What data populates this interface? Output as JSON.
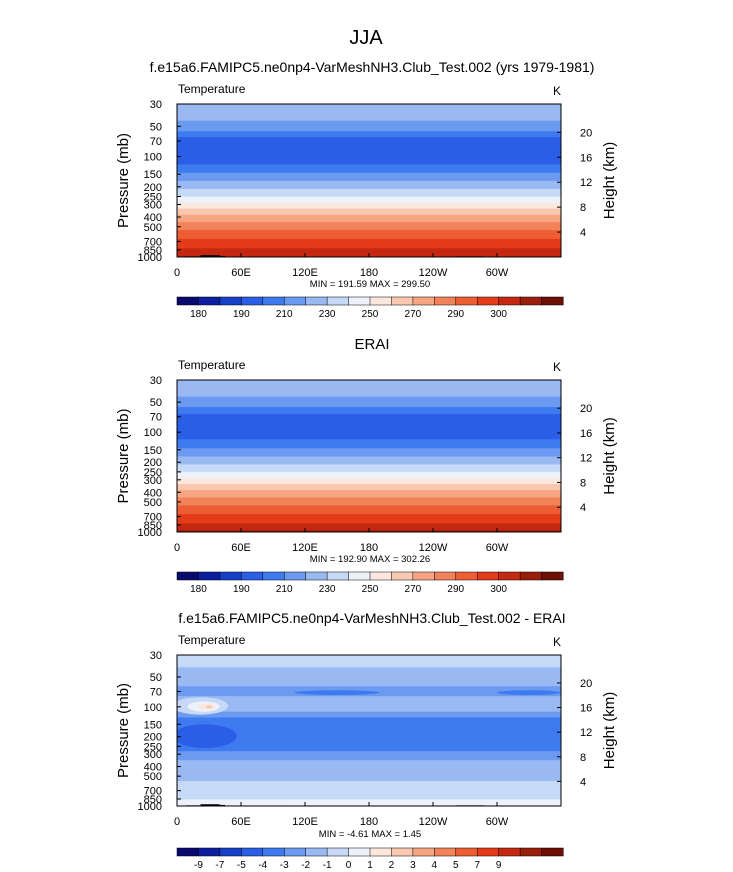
{
  "figure": {
    "title": "JJA"
  },
  "colorbars": {
    "temperature": {
      "colors": [
        "#0a0a6e",
        "#0d1fa0",
        "#1640c8",
        "#2a5ee6",
        "#3f7bf0",
        "#6c9af0",
        "#9ab8f2",
        "#c6d9f6",
        "#ecf1fa",
        "#fce7dd",
        "#f8c9b0",
        "#f6a683",
        "#f2825a",
        "#ee5e34",
        "#e43c18",
        "#c42810",
        "#9a1e0c",
        "#6e0f06"
      ],
      "labels": [
        "180",
        "190",
        "210",
        "230",
        "250",
        "270",
        "290",
        "300"
      ],
      "label_bounds": [
        1,
        3,
        5,
        7,
        9,
        11,
        13,
        15
      ]
    },
    "difference": {
      "colors": [
        "#0a0a6e",
        "#0d1fa0",
        "#1640c8",
        "#2a5ee6",
        "#3f7bf0",
        "#6c9af0",
        "#9ab8f2",
        "#c6d9f6",
        "#ecf1fa",
        "#fce7dd",
        "#f8c9b0",
        "#f6a683",
        "#f2825a",
        "#ee5e34",
        "#e43c18",
        "#c42810",
        "#9a1e0c",
        "#6e0f06"
      ],
      "labels": [
        "-9",
        "-7",
        "-5",
        "-4",
        "-3",
        "-2",
        "-1",
        "0",
        "1",
        "2",
        "3",
        "4",
        "5",
        "7",
        "9"
      ],
      "label_bounds": [
        1,
        2,
        3,
        4,
        5,
        6,
        7,
        8,
        9,
        10,
        11,
        12,
        13,
        14,
        15
      ]
    }
  },
  "chart_data": [
    {
      "type": "heatmap",
      "title": "f.e15a6.FAMIPC5.ne0np4-VarMeshNH3.Club_Test.002 (yrs 1979-1981)",
      "left_label": "Temperature",
      "units": "K",
      "ylabel": "Pressure (mb)",
      "ylabel_right": "Height (km)",
      "x_ticks": [
        "0",
        "60E",
        "120E",
        "180",
        "120W",
        "60W"
      ],
      "x_tick_lon": [
        0,
        60,
        120,
        180,
        240,
        300
      ],
      "xlim": [
        0,
        360
      ],
      "y_ticks": [
        "30",
        "50",
        "70",
        "100",
        "150",
        "200",
        "250",
        "300",
        "400",
        "500",
        "700",
        "850",
        "1000"
      ],
      "y_tick_values": [
        30,
        50,
        70,
        100,
        150,
        200,
        250,
        300,
        400,
        500,
        700,
        850,
        1000
      ],
      "ylim": [
        1000,
        30
      ],
      "height_ticks": [
        "20",
        "16",
        "12",
        "8",
        "4"
      ],
      "height_values": [
        20,
        16,
        12,
        8,
        4
      ],
      "stats": "MIN = 191.59  MAX = 299.50",
      "min": 191.59,
      "max": 299.5,
      "colorbar": "temperature",
      "levels": [
        {
          "p_top": 30,
          "p_bot": 44,
          "color_index": 6
        },
        {
          "p_top": 44,
          "p_bot": 56,
          "color_index": 5
        },
        {
          "p_top": 56,
          "p_bot": 64,
          "color_index": 4
        },
        {
          "p_top": 64,
          "p_bot": 120,
          "color_index": 3
        },
        {
          "p_top": 120,
          "p_bot": 145,
          "color_index": 4
        },
        {
          "p_top": 145,
          "p_bot": 175,
          "color_index": 5
        },
        {
          "p_top": 175,
          "p_bot": 210,
          "color_index": 6
        },
        {
          "p_top": 210,
          "p_bot": 250,
          "color_index": 7
        },
        {
          "p_top": 250,
          "p_bot": 290,
          "color_index": 8
        },
        {
          "p_top": 290,
          "p_bot": 330,
          "color_index": 9
        },
        {
          "p_top": 330,
          "p_bot": 380,
          "color_index": 10
        },
        {
          "p_top": 380,
          "p_bot": 450,
          "color_index": 11
        },
        {
          "p_top": 450,
          "p_bot": 540,
          "color_index": 12
        },
        {
          "p_top": 540,
          "p_bot": 660,
          "color_index": 13
        },
        {
          "p_top": 660,
          "p_bot": 820,
          "color_index": 14
        },
        {
          "p_top": 820,
          "p_bot": 1000,
          "color_index": 15
        }
      ],
      "topography": [
        {
          "lon_start": 8,
          "lon_end": 22,
          "p_top": 985
        },
        {
          "lon_start": 22,
          "lon_end": 40,
          "p_top": 960
        },
        {
          "lon_start": 40,
          "lon_end": 45,
          "p_top": 975
        },
        {
          "lon_start": 100,
          "lon_end": 104,
          "p_top": 988
        },
        {
          "lon_start": 262,
          "lon_end": 288,
          "p_top": 985
        }
      ]
    },
    {
      "type": "heatmap",
      "title": "ERAI",
      "left_label": "Temperature",
      "units": "K",
      "ylabel": "Pressure (mb)",
      "ylabel_right": "Height (km)",
      "x_ticks": [
        "0",
        "60E",
        "120E",
        "180",
        "120W",
        "60W"
      ],
      "x_tick_lon": [
        0,
        60,
        120,
        180,
        240,
        300
      ],
      "xlim": [
        0,
        360
      ],
      "y_ticks": [
        "30",
        "50",
        "70",
        "100",
        "150",
        "200",
        "250",
        "300",
        "400",
        "500",
        "700",
        "850",
        "1000"
      ],
      "y_tick_values": [
        30,
        50,
        70,
        100,
        150,
        200,
        250,
        300,
        400,
        500,
        700,
        850,
        1000
      ],
      "ylim": [
        1000,
        30
      ],
      "height_ticks": [
        "20",
        "16",
        "12",
        "8",
        "4"
      ],
      "height_values": [
        20,
        16,
        12,
        8,
        4
      ],
      "stats": "MIN = 192.90  MAX = 302.26",
      "min": 192.9,
      "max": 302.26,
      "colorbar": "temperature",
      "levels": [
        {
          "p_top": 30,
          "p_bot": 44,
          "color_index": 6
        },
        {
          "p_top": 44,
          "p_bot": 56,
          "color_index": 5
        },
        {
          "p_top": 56,
          "p_bot": 66,
          "color_index": 4
        },
        {
          "p_top": 66,
          "p_bot": 86,
          "color_index": 3
        },
        {
          "p_top": 86,
          "p_bot": 118,
          "color_index": 3
        },
        {
          "p_top": 118,
          "p_bot": 145,
          "color_index": 4
        },
        {
          "p_top": 145,
          "p_bot": 175,
          "color_index": 5
        },
        {
          "p_top": 175,
          "p_bot": 210,
          "color_index": 6
        },
        {
          "p_top": 210,
          "p_bot": 250,
          "color_index": 7
        },
        {
          "p_top": 250,
          "p_bot": 290,
          "color_index": 8
        },
        {
          "p_top": 290,
          "p_bot": 330,
          "color_index": 9
        },
        {
          "p_top": 330,
          "p_bot": 380,
          "color_index": 10
        },
        {
          "p_top": 380,
          "p_bot": 450,
          "color_index": 11
        },
        {
          "p_top": 450,
          "p_bot": 540,
          "color_index": 12
        },
        {
          "p_top": 540,
          "p_bot": 660,
          "color_index": 13
        },
        {
          "p_top": 660,
          "p_bot": 820,
          "color_index": 14
        },
        {
          "p_top": 820,
          "p_bot": 960,
          "color_index": 15
        },
        {
          "p_top": 960,
          "p_bot": 1000,
          "color_index": 16
        }
      ],
      "topography": []
    },
    {
      "type": "heatmap",
      "title": "f.e15a6.FAMIPC5.ne0np4-VarMeshNH3.Club_Test.002 - ERAI",
      "left_label": "Temperature",
      "units": "K",
      "ylabel": "Pressure (mb)",
      "ylabel_right": "Height (km)",
      "x_ticks": [
        "0",
        "60E",
        "120E",
        "180",
        "120W",
        "60W"
      ],
      "x_tick_lon": [
        0,
        60,
        120,
        180,
        240,
        300
      ],
      "xlim": [
        0,
        360
      ],
      "y_ticks": [
        "30",
        "50",
        "70",
        "100",
        "150",
        "200",
        "250",
        "300",
        "400",
        "500",
        "700",
        "850",
        "1000"
      ],
      "y_tick_values": [
        30,
        50,
        70,
        100,
        150,
        200,
        250,
        300,
        400,
        500,
        700,
        850,
        1000
      ],
      "ylim": [
        1000,
        30
      ],
      "height_ticks": [
        "20",
        "16",
        "12",
        "8",
        "4"
      ],
      "height_values": [
        20,
        16,
        12,
        8,
        4
      ],
      "stats": "MIN = -4.61  MAX =  1.45",
      "min": -4.61,
      "max": 1.45,
      "colorbar": "difference",
      "background_color_index": 6,
      "levels": [
        {
          "p_top": 30,
          "p_bot": 40,
          "color_index": 7
        },
        {
          "p_top": 40,
          "p_bot": 62,
          "color_index": 6
        },
        {
          "p_top": 62,
          "p_bot": 78,
          "color_index": 5
        },
        {
          "p_top": 78,
          "p_bot": 112,
          "color_index": 6
        },
        {
          "p_top": 112,
          "p_bot": 128,
          "color_index": 5
        },
        {
          "p_top": 128,
          "p_bot": 280,
          "color_index": 4
        },
        {
          "p_top": 280,
          "p_bot": 345,
          "color_index": 5
        },
        {
          "p_top": 345,
          "p_bot": 560,
          "color_index": 6
        },
        {
          "p_top": 560,
          "p_bot": 860,
          "color_index": 7
        },
        {
          "p_top": 860,
          "p_bot": 1000,
          "color_index": 8
        }
      ],
      "blobs": [
        {
          "lon": 22,
          "lon_r": 26,
          "p": 100,
          "p_r": 20,
          "color_index": 7
        },
        {
          "lon": 25,
          "lon_r": 15,
          "p": 100,
          "p_r": 12,
          "color_index": 8
        },
        {
          "lon": 28,
          "lon_r": 8,
          "p": 100,
          "p_r": 7,
          "color_index": 9
        },
        {
          "lon": 30,
          "lon_r": 3,
          "p": 100,
          "p_r": 3,
          "color_index": 10
        },
        {
          "lon": 26,
          "lon_r": 30,
          "p": 205,
          "p_r": 55,
          "color_index": 3
        },
        {
          "lon": 150,
          "lon_r": 40,
          "p": 72,
          "p_r": 4,
          "color_index": 4
        },
        {
          "lon": 330,
          "lon_r": 30,
          "p": 72,
          "p_r": 4,
          "color_index": 4
        }
      ],
      "topography": [
        {
          "lon_start": 8,
          "lon_end": 22,
          "p_top": 985
        },
        {
          "lon_start": 22,
          "lon_end": 40,
          "p_top": 960
        },
        {
          "lon_start": 40,
          "lon_end": 45,
          "p_top": 975
        },
        {
          "lon_start": 100,
          "lon_end": 104,
          "p_top": 988
        },
        {
          "lon_start": 262,
          "lon_end": 288,
          "p_top": 985
        }
      ]
    }
  ]
}
